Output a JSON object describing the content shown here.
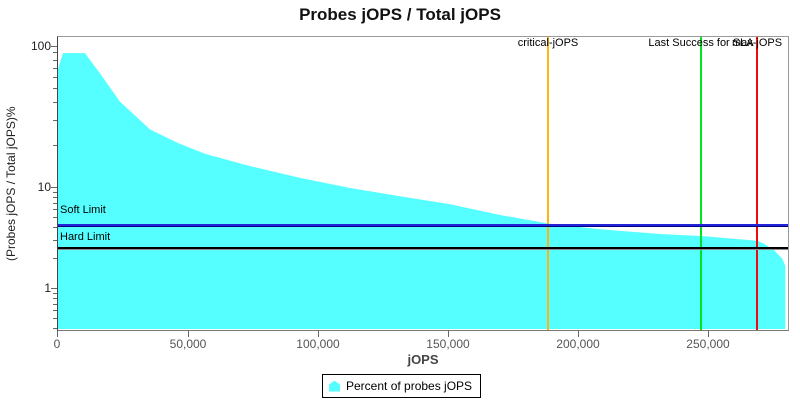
{
  "title": "Probes jOPS / Total jOPS",
  "y_axis": {
    "title": "(Probes jOPS / Total jOPS)%",
    "ticks": [
      "100",
      "10",
      "1"
    ]
  },
  "x_axis": {
    "title": "jOPS",
    "ticks": [
      "0",
      "50,000",
      "100,000",
      "150,000",
      "200,000",
      "250,000"
    ]
  },
  "annotations": {
    "soft_limit": "Soft Limit",
    "hard_limit": "Hard Limit",
    "critical": "critical-jOPS",
    "last_success": "Last Success for SLA",
    "max": "max-jOPS"
  },
  "legend": {
    "label": "Percent of probes jOPS"
  },
  "colors": {
    "area": "#55FFFF",
    "soft_limit": "#2323D7",
    "soft_limit_under": "#000080",
    "hard_limit": "#000000",
    "hard_limit_under": "#8C8C8C",
    "critical": "#FFB414",
    "last_success": "#00E61E",
    "max": "#F00A0A"
  },
  "chart_data": {
    "type": "area",
    "title": "Probes jOPS / Total jOPS",
    "xlabel": "jOPS",
    "ylabel": "(Probes jOPS / Total jOPS)%",
    "x_range": [
      0,
      280600
    ],
    "x_tick_values": [
      0,
      50000,
      100000,
      150000,
      200000,
      250000
    ],
    "y_scale": "log",
    "y_tick_values": [
      1,
      10,
      100
    ],
    "grid": false,
    "legend_position": "bottom-center",
    "series": [
      {
        "name": "Percent of probes jOPS",
        "points": [
          [
            400,
            70
          ],
          [
            2300,
            90.5
          ],
          [
            10700,
            90.5
          ],
          [
            16500,
            65
          ],
          [
            24100,
            41
          ],
          [
            35700,
            26
          ],
          [
            46000,
            21
          ],
          [
            56700,
            17.5
          ],
          [
            74000,
            14.3
          ],
          [
            93200,
            11.8
          ],
          [
            112300,
            10
          ],
          [
            131500,
            8.3
          ],
          [
            150700,
            6.9
          ],
          [
            169800,
            5.4
          ],
          [
            188300,
            4.45
          ],
          [
            208200,
            3.9
          ],
          [
            231200,
            3.5
          ],
          [
            246900,
            3.35
          ],
          [
            268400,
            3.0
          ],
          [
            271000,
            2.8
          ],
          [
            275000,
            2.4
          ],
          [
            278000,
            2.0
          ],
          [
            279200,
            1.7
          ]
        ]
      }
    ],
    "h_markers": [
      {
        "label": "Soft Limit",
        "value_pct": 4.3
      },
      {
        "label": "Hard Limit",
        "value_pct": 2.55
      }
    ],
    "v_markers": [
      {
        "label": "critical-jOPS",
        "value_jops": 188300
      },
      {
        "label": "Last Success for SLA",
        "value_jops": 246900
      },
      {
        "label": "max-jOPS",
        "value_jops": 268400
      }
    ]
  }
}
